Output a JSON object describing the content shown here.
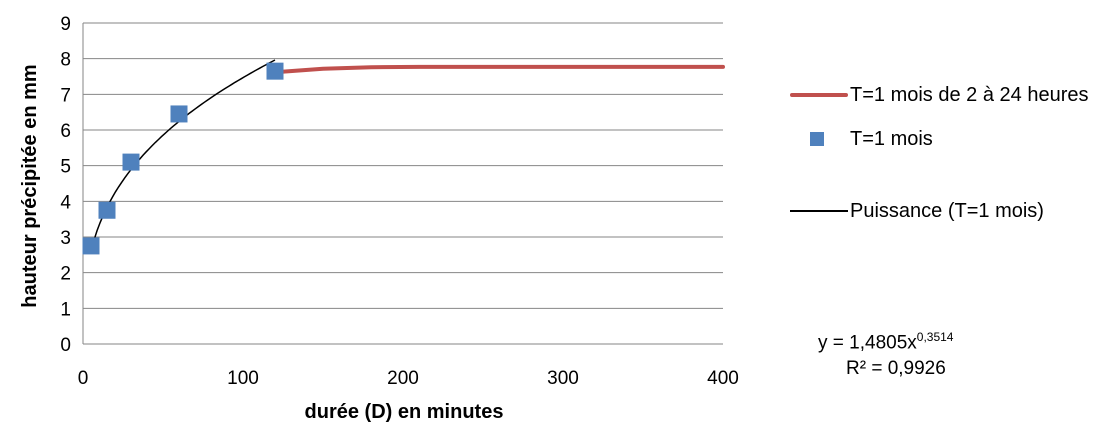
{
  "chart_data": {
    "type": "scatter",
    "xlabel": "durée (D) en minutes",
    "ylabel": "hauteur précipitée en mm",
    "xlim": [
      0,
      400
    ],
    "ylim": [
      0,
      9
    ],
    "x_ticks": [
      "0",
      "100",
      "200",
      "300",
      "400"
    ],
    "y_ticks": [
      "0",
      "1",
      "2",
      "3",
      "4",
      "5",
      "6",
      "7",
      "8",
      "9"
    ],
    "grid": "horizontal",
    "legend_position": "right",
    "series": [
      {
        "name": "T=1 mois de 2 à 24 heures",
        "kind": "line",
        "color": "#C0504D",
        "x": [
          120,
          150,
          180,
          210,
          240,
          300,
          360,
          400
        ],
        "y": [
          7.62,
          7.72,
          7.76,
          7.77,
          7.77,
          7.77,
          7.77,
          7.77
        ]
      },
      {
        "name": "T=1 mois",
        "kind": "markers",
        "color": "#4F81BD",
        "x": [
          5,
          15,
          30,
          60,
          120
        ],
        "y": [
          2.75,
          3.75,
          5.1,
          6.45,
          7.65
        ]
      },
      {
        "name": "Puissance (T=1 mois)",
        "kind": "trendline",
        "color": "#000000",
        "coef": 1.4805,
        "exponent": 0.3514,
        "x_range": [
          5,
          120
        ]
      }
    ],
    "annotations": {
      "equation_prefix": "y = 1,4805x",
      "equation_exponent": "0,3514",
      "r_squared": "R² = 0,9926"
    }
  }
}
